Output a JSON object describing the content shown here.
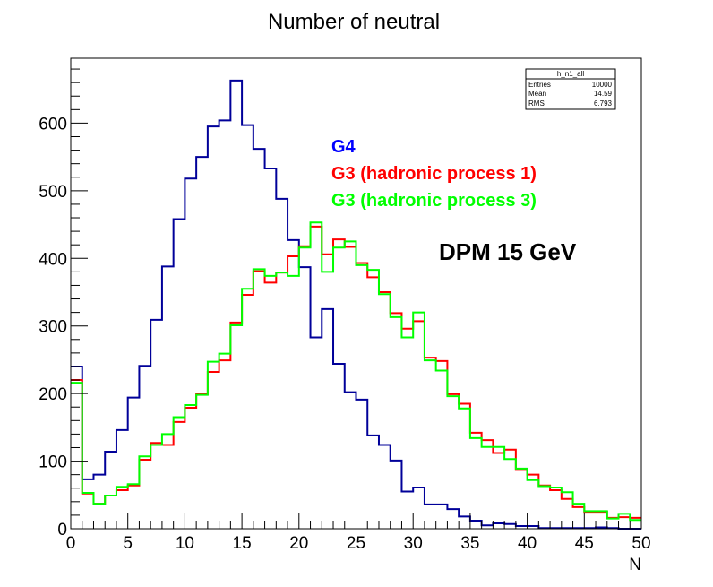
{
  "chart_data": {
    "type": "histogram-step",
    "title": "Number of neutral",
    "xlabel": "N",
    "ylabel": "",
    "xlim": [
      0,
      50
    ],
    "ylim": [
      0,
      696
    ],
    "bin_width": 1,
    "x_ticks": [
      0,
      5,
      10,
      15,
      20,
      25,
      30,
      35,
      40,
      45,
      50
    ],
    "y_ticks": [
      0,
      100,
      200,
      300,
      400,
      500,
      600
    ],
    "grid": false,
    "series": [
      {
        "name": "G4",
        "color": "#000099",
        "values": [
          240,
          73,
          80,
          114,
          146,
          194,
          241,
          309,
          388,
          458,
          518,
          550,
          595,
          604,
          663,
          597,
          562,
          533,
          488,
          427,
          387,
          283,
          325,
          244,
          202,
          191,
          138,
          124,
          101,
          55,
          61,
          36,
          36,
          29,
          18,
          12,
          5,
          8,
          7,
          4,
          4,
          1,
          1,
          1,
          1,
          1,
          2,
          1,
          0,
          0
        ]
      },
      {
        "name": "G3 (hadronic process 1)",
        "color": "#ff0000",
        "values": [
          220,
          52,
          37,
          49,
          57,
          64,
          102,
          127,
          124,
          158,
          179,
          199,
          232,
          249,
          305,
          346,
          381,
          364,
          379,
          403,
          418,
          447,
          406,
          428,
          417,
          393,
          372,
          350,
          319,
          296,
          307,
          253,
          248,
          199,
          185,
          142,
          131,
          112,
          117,
          87,
          80,
          64,
          57,
          44,
          32,
          25,
          25,
          16,
          17,
          16
        ]
      },
      {
        "name": "G3 (hadronic process 3)",
        "color": "#00ff00",
        "values": [
          216,
          53,
          37,
          49,
          62,
          66,
          107,
          124,
          140,
          165,
          183,
          198,
          247,
          259,
          301,
          355,
          384,
          374,
          379,
          374,
          416,
          453,
          380,
          416,
          425,
          390,
          383,
          347,
          313,
          283,
          320,
          249,
          234,
          196,
          178,
          134,
          121,
          121,
          103,
          89,
          72,
          63,
          61,
          54,
          37,
          26,
          26,
          15,
          22,
          13
        ]
      }
    ],
    "legend": {
      "placement": "top-center",
      "entries": [
        {
          "label": "G4",
          "color": "#0000ff"
        },
        {
          "label": "G3 (hadronic process 1)",
          "color": "#ff0000"
        },
        {
          "label": "G3 (hadronic process 3)",
          "color": "#00ff00"
        }
      ]
    },
    "annotations": [
      {
        "text": "DPM 15 GeV",
        "color": "#000000"
      }
    ],
    "stats_box": {
      "placement": "top-right",
      "name": "h_n1_all",
      "rows": [
        {
          "label": "Entries",
          "value": "10000"
        },
        {
          "label": "Mean",
          "value": "14.59"
        },
        {
          "label": "RMS",
          "value": "6.793"
        }
      ]
    }
  }
}
